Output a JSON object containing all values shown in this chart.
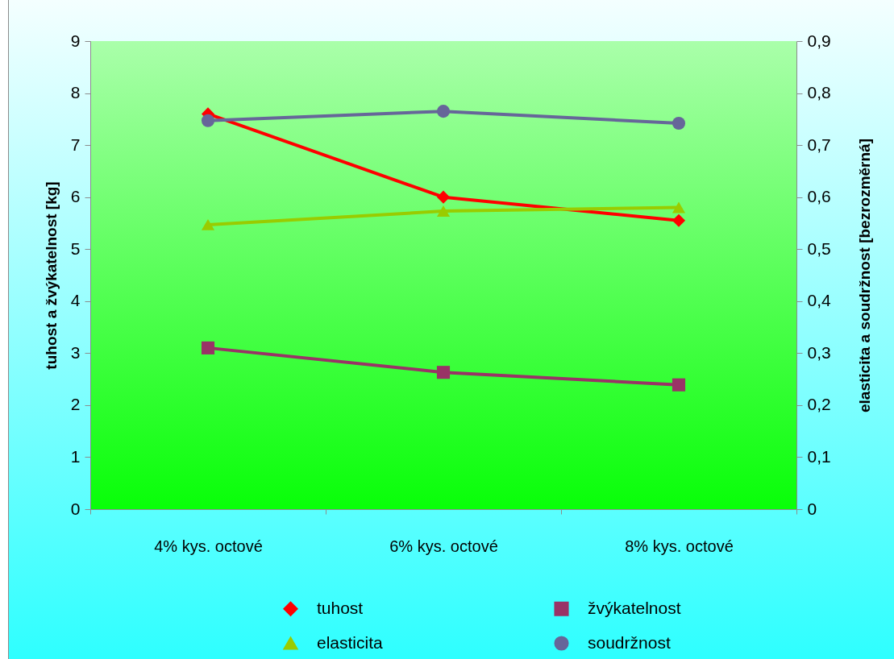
{
  "chart_data": {
    "type": "line",
    "categories": [
      "4% kys. octové",
      "6% kys. octové",
      "8% kys. octové"
    ],
    "ylabel": "tuhost a žvýkatelnost [kg]",
    "y2label": "elasticita a soudržnost [bezrozměrná]",
    "ylim": [
      0,
      9
    ],
    "yticks": [
      0,
      1,
      2,
      3,
      4,
      5,
      6,
      7,
      8,
      9
    ],
    "y2lim": [
      0,
      0.9
    ],
    "y2ticks": [
      0,
      {
        "value": 0.1,
        "label": "0,1"
      },
      {
        "value": 0.2,
        "label": "0,2"
      },
      {
        "value": 0.3,
        "label": "0,3"
      },
      {
        "value": 0.4,
        "label": "0,4"
      },
      {
        "value": 0.5,
        "label": "0,5"
      },
      {
        "value": 0.6,
        "label": "0,6"
      },
      {
        "value": 0.7,
        "label": "0,7"
      },
      {
        "value": 0.8,
        "label": "0,8"
      },
      {
        "value": 0.9,
        "label": "0,9"
      }
    ],
    "legend": "bottom",
    "line_style": "solid",
    "series": [
      {
        "name": "tuhost",
        "color": "#ff0000",
        "marker": "diamond",
        "values": [
          7.6,
          6.0,
          5.55
        ]
      },
      {
        "name": "žvýkatelnost",
        "color": "#993366",
        "marker": "square",
        "values": [
          3.1,
          2.63,
          2.39
        ]
      },
      {
        "name": "elasticita",
        "color": "#99cc00",
        "marker": "triangle",
        "axis": "y2",
        "values": [
          0.547,
          0.573,
          0.58
        ]
      },
      {
        "name": "soudržnost",
        "color": "#666699",
        "marker": "circle",
        "axis": "y2",
        "values": [
          0.747,
          0.765,
          0.742
        ]
      }
    ]
  }
}
